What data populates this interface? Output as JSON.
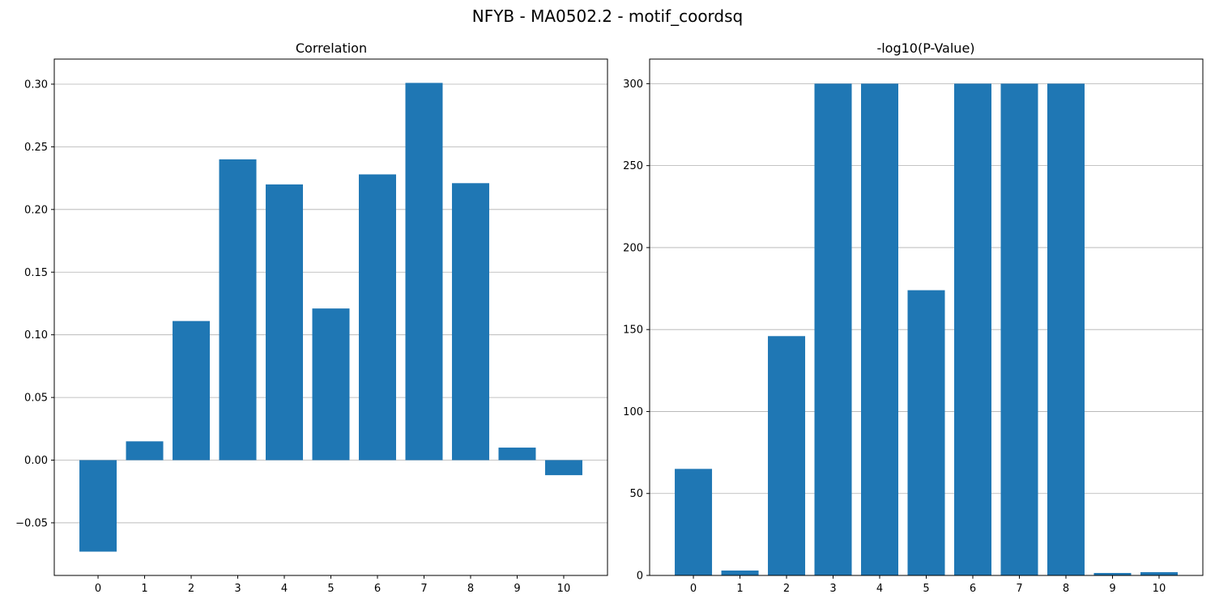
{
  "figure": {
    "title": "NFYB - MA0502.2 - motif_coordsq"
  },
  "chart_data": [
    {
      "type": "bar",
      "title": "Correlation",
      "xlabel": "",
      "ylabel": "",
      "categories": [
        "0",
        "1",
        "2",
        "3",
        "4",
        "5",
        "6",
        "7",
        "8",
        "9",
        "10"
      ],
      "values": [
        -0.073,
        0.015,
        0.111,
        0.24,
        0.22,
        0.121,
        0.228,
        0.301,
        0.221,
        0.01,
        -0.012
      ],
      "ylim": [
        -0.092,
        0.32
      ],
      "yticks": [
        -0.05,
        0.0,
        0.05,
        0.1,
        0.15,
        0.2,
        0.25,
        0.3
      ],
      "ytick_labels": [
        "−0.05",
        "0.00",
        "0.05",
        "0.10",
        "0.15",
        "0.20",
        "0.25",
        "0.30"
      ],
      "grid": "y",
      "bar_color": "#1f77b4"
    },
    {
      "type": "bar",
      "title": "-log10(P-Value)",
      "xlabel": "",
      "ylabel": "",
      "categories": [
        "0",
        "1",
        "2",
        "3",
        "4",
        "5",
        "6",
        "7",
        "8",
        "9",
        "10"
      ],
      "values": [
        65,
        3,
        146,
        300,
        300,
        174,
        300,
        300,
        300,
        1.5,
        2
      ],
      "ylim": [
        0,
        315
      ],
      "yticks": [
        0,
        50,
        100,
        150,
        200,
        250,
        300
      ],
      "ytick_labels": [
        "0",
        "50",
        "100",
        "150",
        "200",
        "250",
        "300"
      ],
      "grid": "y",
      "bar_color": "#1f77b4"
    }
  ]
}
